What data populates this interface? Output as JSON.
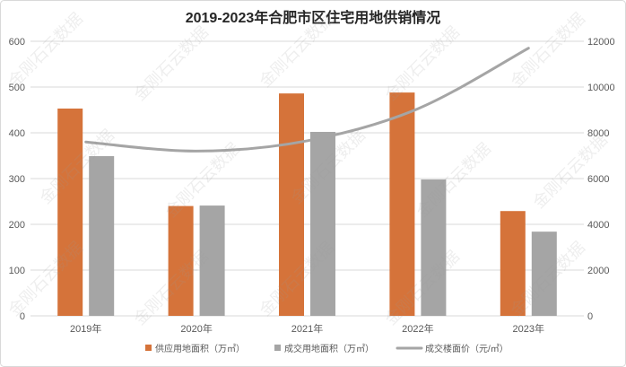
{
  "chart_data": {
    "type": "bar",
    "title": "2019-2023年合肥市区住宅用地供销情况",
    "categories": [
      "2019年",
      "2020年",
      "2021年",
      "2022年",
      "2023年"
    ],
    "series": [
      {
        "name": "供应用地面积（万㎡）",
        "type": "bar",
        "axis": "left",
        "color": "#D5733A",
        "values": [
          453,
          240,
          486,
          488,
          229
        ]
      },
      {
        "name": "成交用地面积（万㎡）",
        "type": "bar",
        "axis": "left",
        "color": "#A5A5A5",
        "values": [
          349,
          241,
          402,
          298,
          184
        ]
      },
      {
        "name": "成交楼面价（元/㎡）",
        "type": "line",
        "axis": "right",
        "smooth": true,
        "color": "#A5A5A5",
        "values": [
          7600,
          7200,
          7650,
          9050,
          11700
        ]
      }
    ],
    "ylim": [
      0,
      600
    ],
    "yticks": [
      0,
      100,
      200,
      300,
      400,
      500,
      600
    ],
    "y2lim": [
      0,
      12000
    ],
    "y2ticks": [
      0,
      2000,
      4000,
      6000,
      8000,
      10000,
      12000
    ],
    "grid": true,
    "legend": "bottom"
  },
  "watermark": "金刚石云数据"
}
